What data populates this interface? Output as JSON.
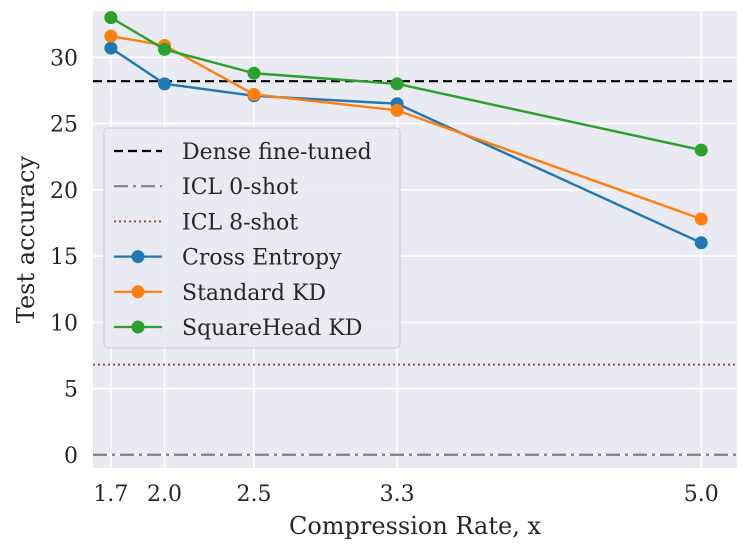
{
  "chart_data": {
    "type": "line",
    "title": "",
    "xlabel": "Compression Rate, x",
    "ylabel": "Test accuracy",
    "x": [
      1.7,
      2.0,
      2.5,
      3.3,
      5.0
    ],
    "x_tick_labels": [
      "1.7",
      "2.0",
      "2.5",
      "3.3",
      "5.0"
    ],
    "xlim": [
      1.6,
      5.2
    ],
    "ylim": [
      -1,
      33.5
    ],
    "y_ticks": [
      0,
      5,
      10,
      15,
      20,
      25,
      30
    ],
    "y_tick_labels": [
      "0",
      "5",
      "10",
      "15",
      "20",
      "25",
      "30"
    ],
    "grid": true,
    "legend_position": "center-left",
    "reference_lines": [
      {
        "name": "Dense fine-tuned",
        "value": 28.2,
        "color": "#000000",
        "style": "dashed"
      },
      {
        "name": "ICL 0-shot",
        "value": 0.0,
        "color": "#808080",
        "style": "dashdot"
      },
      {
        "name": "ICL 8-shot",
        "value": 6.8,
        "color": "#8c564b",
        "style": "dotted"
      }
    ],
    "series": [
      {
        "name": "Cross Entropy",
        "color": "#1f77b4",
        "values": [
          30.7,
          28.0,
          27.1,
          26.5,
          16.0
        ]
      },
      {
        "name": "Standard KD",
        "color": "#ff7f0e",
        "values": [
          31.6,
          30.9,
          27.2,
          26.0,
          17.8
        ]
      },
      {
        "name": "SquareHead KD",
        "color": "#2ca02c",
        "values": [
          33.0,
          30.6,
          28.8,
          28.0,
          23.0
        ]
      }
    ]
  }
}
